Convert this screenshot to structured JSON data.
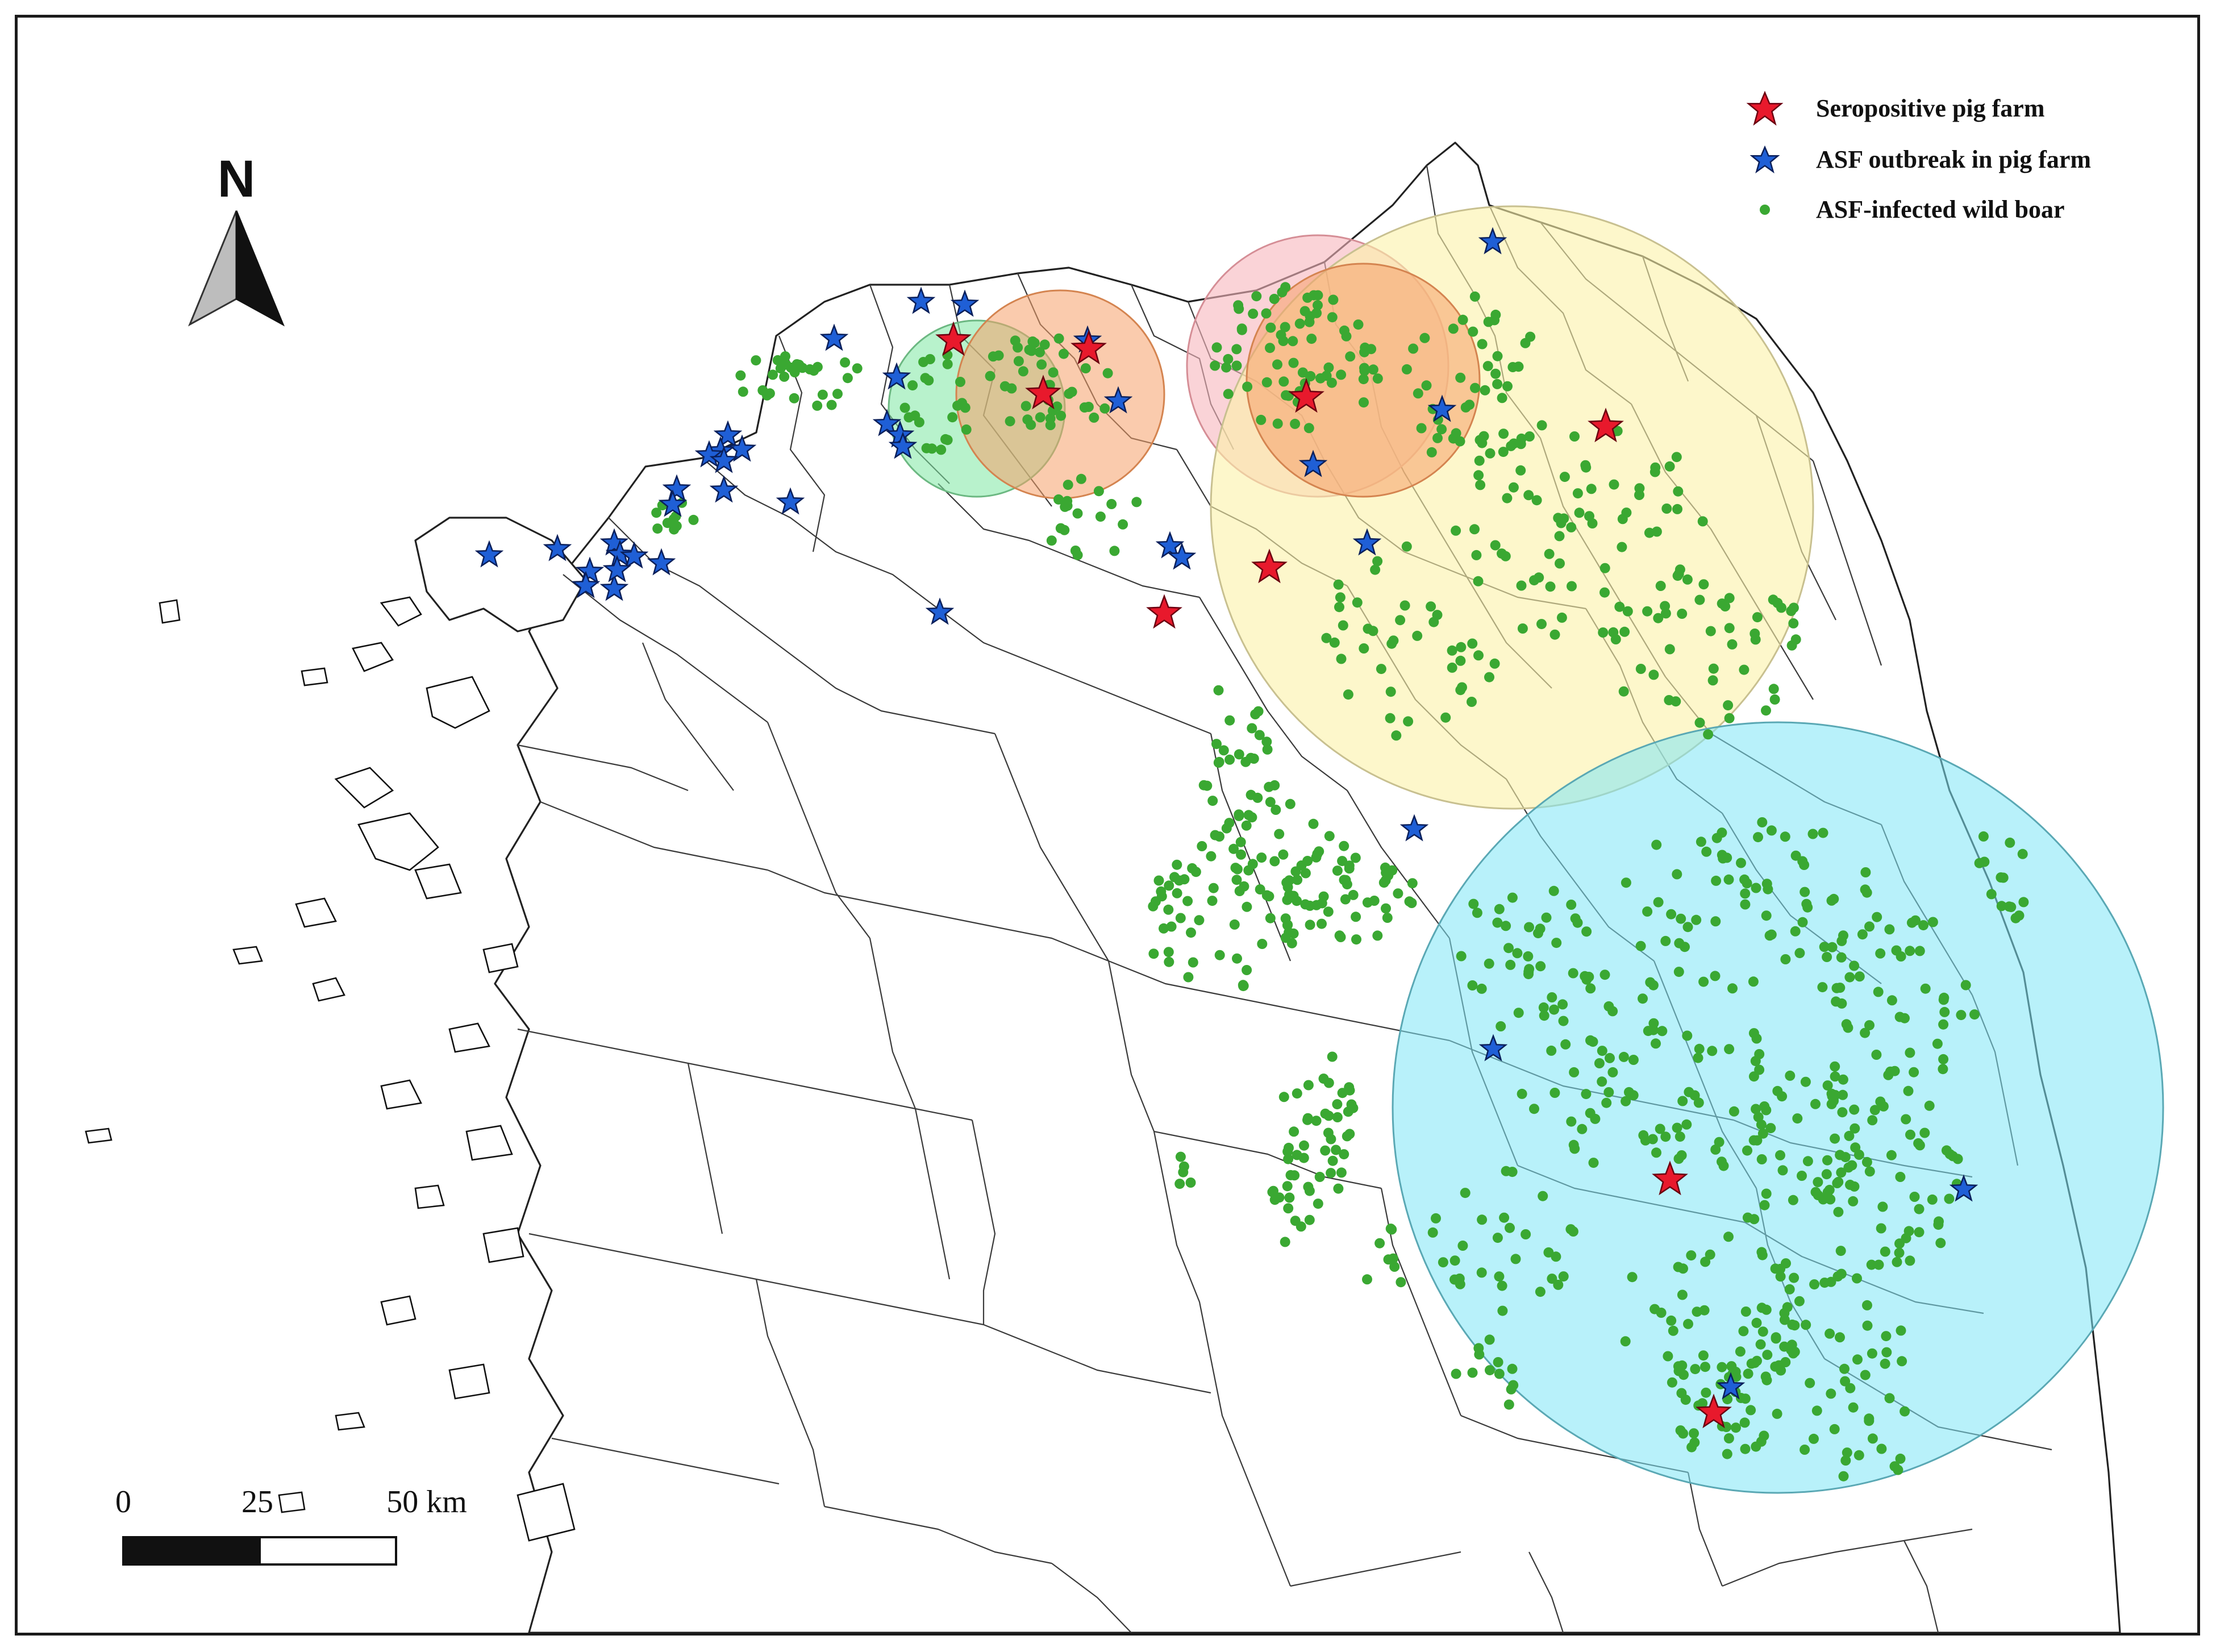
{
  "legend": {
    "items": [
      {
        "label": "Seropositive pig farm",
        "symbol": "red-star-icon",
        "color": "#e8192c"
      },
      {
        "label": "ASF outbreak in pig farm",
        "symbol": "blue-star-icon",
        "color": "#1f5fd6"
      },
      {
        "label": "ASF-infected wild boar",
        "symbol": "green-dot-icon",
        "color": "#3aa832"
      }
    ]
  },
  "north_arrow": {
    "label": "N"
  },
  "scale_bar": {
    "labels": [
      "0",
      "25",
      "50 km"
    ]
  },
  "colors": {
    "buffer_green": "#7de8a3",
    "buffer_orange": "#f5a06a",
    "buffer_pink": "#f7b5bd",
    "buffer_yellow": "#fbf2a8",
    "buffer_cyan": "#7ee6f5",
    "wild_boar": "#3aa832",
    "seropositive": "#e8192c",
    "outbreak": "#1f5fd6"
  }
}
